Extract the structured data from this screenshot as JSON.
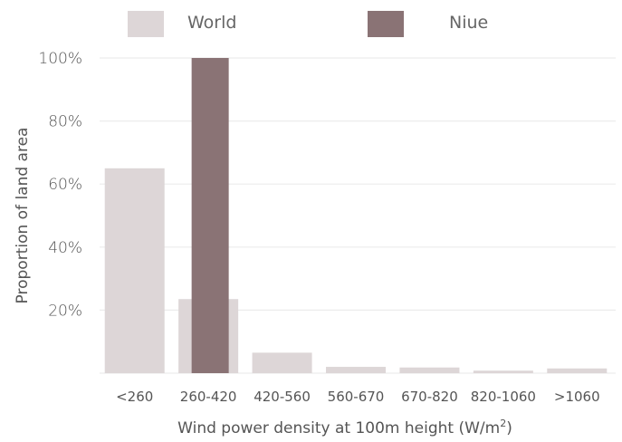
{
  "chart_data": {
    "type": "bar",
    "categories": [
      "<260",
      "260-420",
      "420-560",
      "560-670",
      "670-820",
      "820-1060",
      ">1060"
    ],
    "series": [
      {
        "name": "World",
        "color": "#ddd6d7",
        "values": [
          65,
          23.5,
          6.5,
          2,
          1.8,
          0.8,
          1.5
        ]
      },
      {
        "name": "Niue",
        "color": "#8a7375",
        "values": [
          0,
          100,
          0,
          0,
          0,
          0,
          0
        ]
      }
    ],
    "xlabel": "Wind power density at 100m height (W/m",
    "xlabel_superscript": "2",
    "xlabel_suffix": ")",
    "ylabel": "Proportion of land area",
    "ylim": [
      0,
      100
    ],
    "yticks": [
      20,
      40,
      60,
      80,
      100
    ],
    "ytick_labels": [
      "20%",
      "40%",
      "60%",
      "80%",
      "100%"
    ],
    "grid": true,
    "legend_position": "top"
  }
}
